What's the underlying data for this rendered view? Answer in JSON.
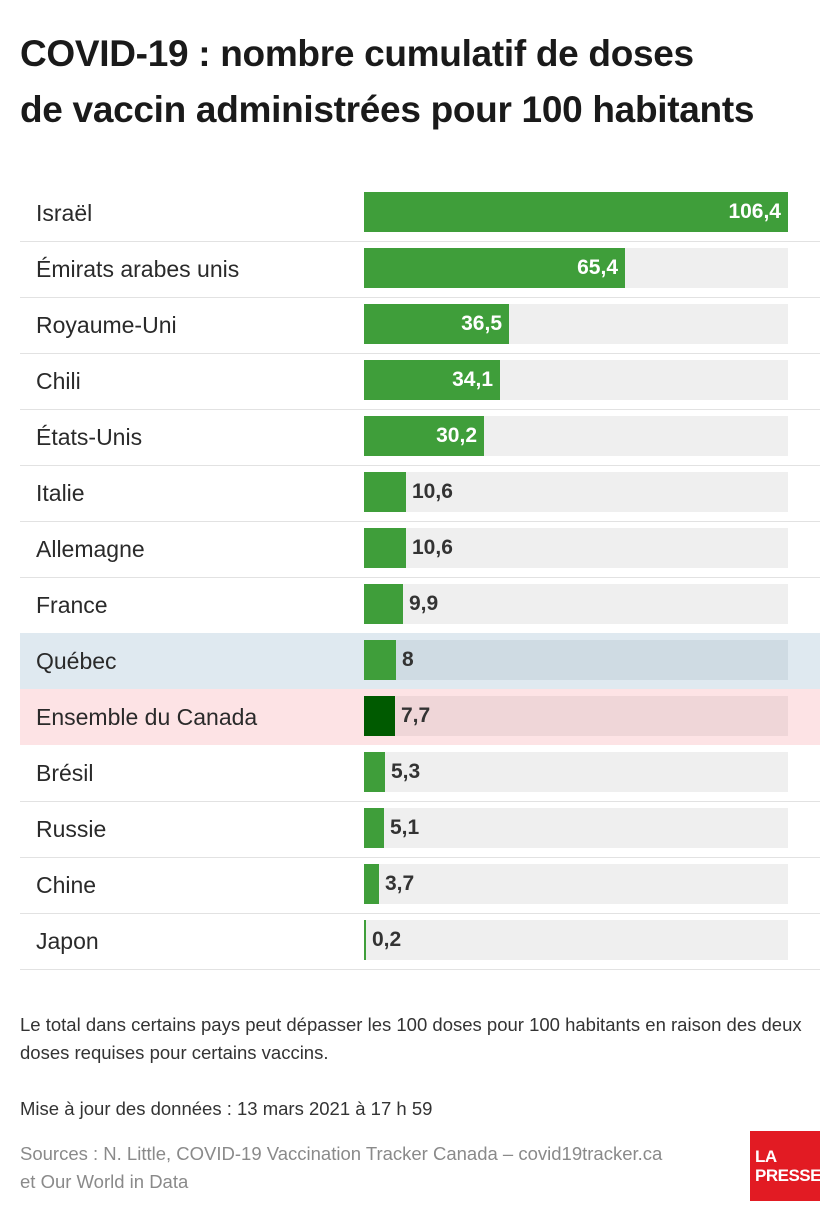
{
  "title": {
    "line1": "COVID-19 : nombre cumulatif de doses",
    "line2": "de vaccin administrées pour 100 habitants"
  },
  "chart_data": {
    "type": "bar",
    "orientation": "horizontal",
    "title": "COVID-19 : nombre cumulatif de doses de vaccin administrées pour 100 habitants",
    "categories": [
      "Israël",
      "Émirats arabes unis",
      "Royaume-Uni",
      "Chili",
      "États-Unis",
      "Italie",
      "Allemagne",
      "France",
      "Québec",
      "Ensemble du Canada",
      "Brésil",
      "Russie",
      "Chine",
      "Japon"
    ],
    "values": [
      106.4,
      65.4,
      36.5,
      34.1,
      30.2,
      10.6,
      10.6,
      9.9,
      8,
      7.7,
      5.3,
      5.1,
      3.7,
      0.2
    ],
    "value_labels": [
      "106,4",
      "65,4",
      "36,5",
      "34,1",
      "30,2",
      "10,6",
      "10,6",
      "9,9",
      "8",
      "7,7",
      "5,3",
      "5,1",
      "3,7",
      "0,2"
    ],
    "highlights": {
      "Québec": "blue",
      "Ensemble du Canada": "pink"
    },
    "xlim": [
      0,
      106.4
    ],
    "bar_color": "#3f9e3a",
    "highlight_bar_color": "#005a00"
  },
  "note": "Le total dans certains pays peut dépasser les 100 doses pour 100 habitants en raison des deux doses requises pour certains vaccins.",
  "updated": "Mise à jour des données : 13 mars 2021 à 17 h 59",
  "sources": {
    "line1": "Sources : N. Little, COVID-19 Vaccination Tracker Canada – covid19tracker.ca",
    "line2": "et Our World in Data"
  },
  "logo": {
    "line1": "LA",
    "line2": "PRESSE"
  }
}
